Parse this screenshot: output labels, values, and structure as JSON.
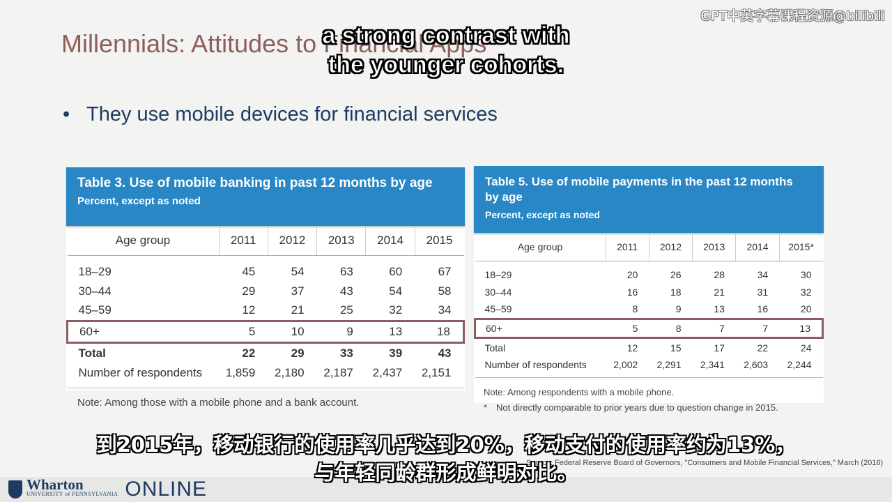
{
  "slide": {
    "title": "Millennials: Attitudes to Financial Apps",
    "bullet": "They use mobile devices for financial services",
    "source": "Source:  Federal Reserve Board of Governors, \"Consumers and Mobile Financial Services,\" March (2016)"
  },
  "overlay": {
    "watermark": "GPT中英字幕课程资源@bilibili",
    "subtitle_en": [
      "a strong contrast with",
      "the younger cohorts."
    ],
    "subtitle_zh": [
      "到2015年，移动银行的使用率几乎达到20%，移动支付的使用率约为13%，",
      "与年轻同龄群形成鲜明对比。"
    ]
  },
  "table3": {
    "title": "Table 3. Use of mobile banking in past 12 months by age",
    "subtitle": "Percent, except as noted",
    "headers": [
      "Age group",
      "2011",
      "2012",
      "2013",
      "2014",
      "2015"
    ],
    "rows": [
      [
        "18–29",
        "45",
        "54",
        "63",
        "60",
        "67"
      ],
      [
        "30–44",
        "29",
        "37",
        "43",
        "54",
        "58"
      ],
      [
        "45–59",
        "12",
        "21",
        "25",
        "32",
        "34"
      ],
      [
        "60+",
        "5",
        "10",
        "9",
        "13",
        "18"
      ],
      [
        "Total",
        "22",
        "29",
        "33",
        "39",
        "43"
      ],
      [
        "Number of respondents",
        "1,859",
        "2,180",
        "2,187",
        "2,437",
        "2,151"
      ]
    ],
    "note": "Note: Among those with a mobile phone and a bank account."
  },
  "table5": {
    "title_line1": "Table 5. Use of mobile payments in the past 12 months",
    "title_line2": "by age",
    "subtitle": "Percent, except as noted",
    "headers": [
      "Age group",
      "2011",
      "2012",
      "2013",
      "2014",
      "2015*"
    ],
    "rows": [
      [
        "18–29",
        "20",
        "26",
        "28",
        "34",
        "30"
      ],
      [
        "30–44",
        "16",
        "18",
        "21",
        "31",
        "32"
      ],
      [
        "45–59",
        "8",
        "9",
        "13",
        "16",
        "20"
      ],
      [
        "60+",
        "5",
        "8",
        "7",
        "7",
        "13"
      ],
      [
        "Total",
        "12",
        "15",
        "17",
        "22",
        "24"
      ],
      [
        "Number of respondents",
        "2,002",
        "2,291",
        "2,341",
        "2,603",
        "2,244"
      ]
    ],
    "note1": "Note: Among respondents with a mobile phone.",
    "note2_star": "*",
    "note2": "Not directly comparable to prior years due to question change in 2015."
  },
  "footer": {
    "brand": "Wharton",
    "brand_sub": "UNIVERSITY of PENNSYLVANIA",
    "online": "ONLINE"
  },
  "colors": {
    "title": "#8c5f5c",
    "table_header": "#2887c4",
    "highlight": "#8b5d63",
    "brand": "#1d3b63"
  }
}
